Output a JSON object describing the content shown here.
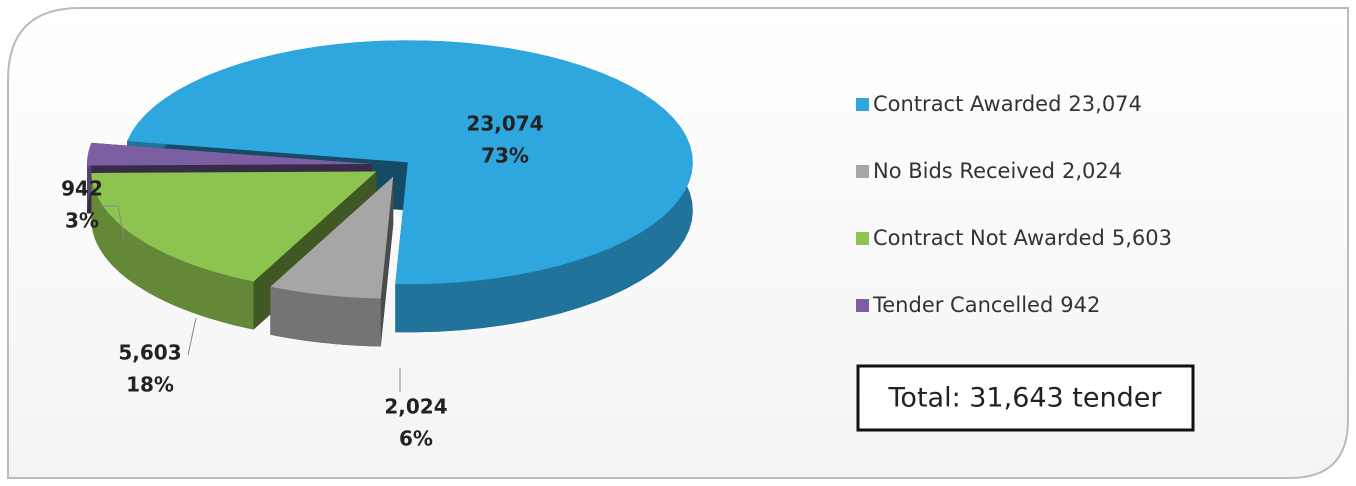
{
  "chart_data": {
    "type": "pie",
    "categories": [
      "Contract Awarded",
      "No Bids Received",
      "Contract Not Awarded",
      "Tender Cancelled"
    ],
    "values": [
      23074,
      2024,
      5603,
      942
    ],
    "value_labels": [
      "23,074",
      "2,024",
      "5,603",
      "942"
    ],
    "percent_labels": [
      "73%",
      "6%",
      "18%",
      "3%"
    ],
    "colors": [
      "#2ea6de",
      "#a6a6a6",
      "#8dc450",
      "#7c5fa3"
    ],
    "legend": "right",
    "annotation": "Total: 31,643 tender"
  }
}
